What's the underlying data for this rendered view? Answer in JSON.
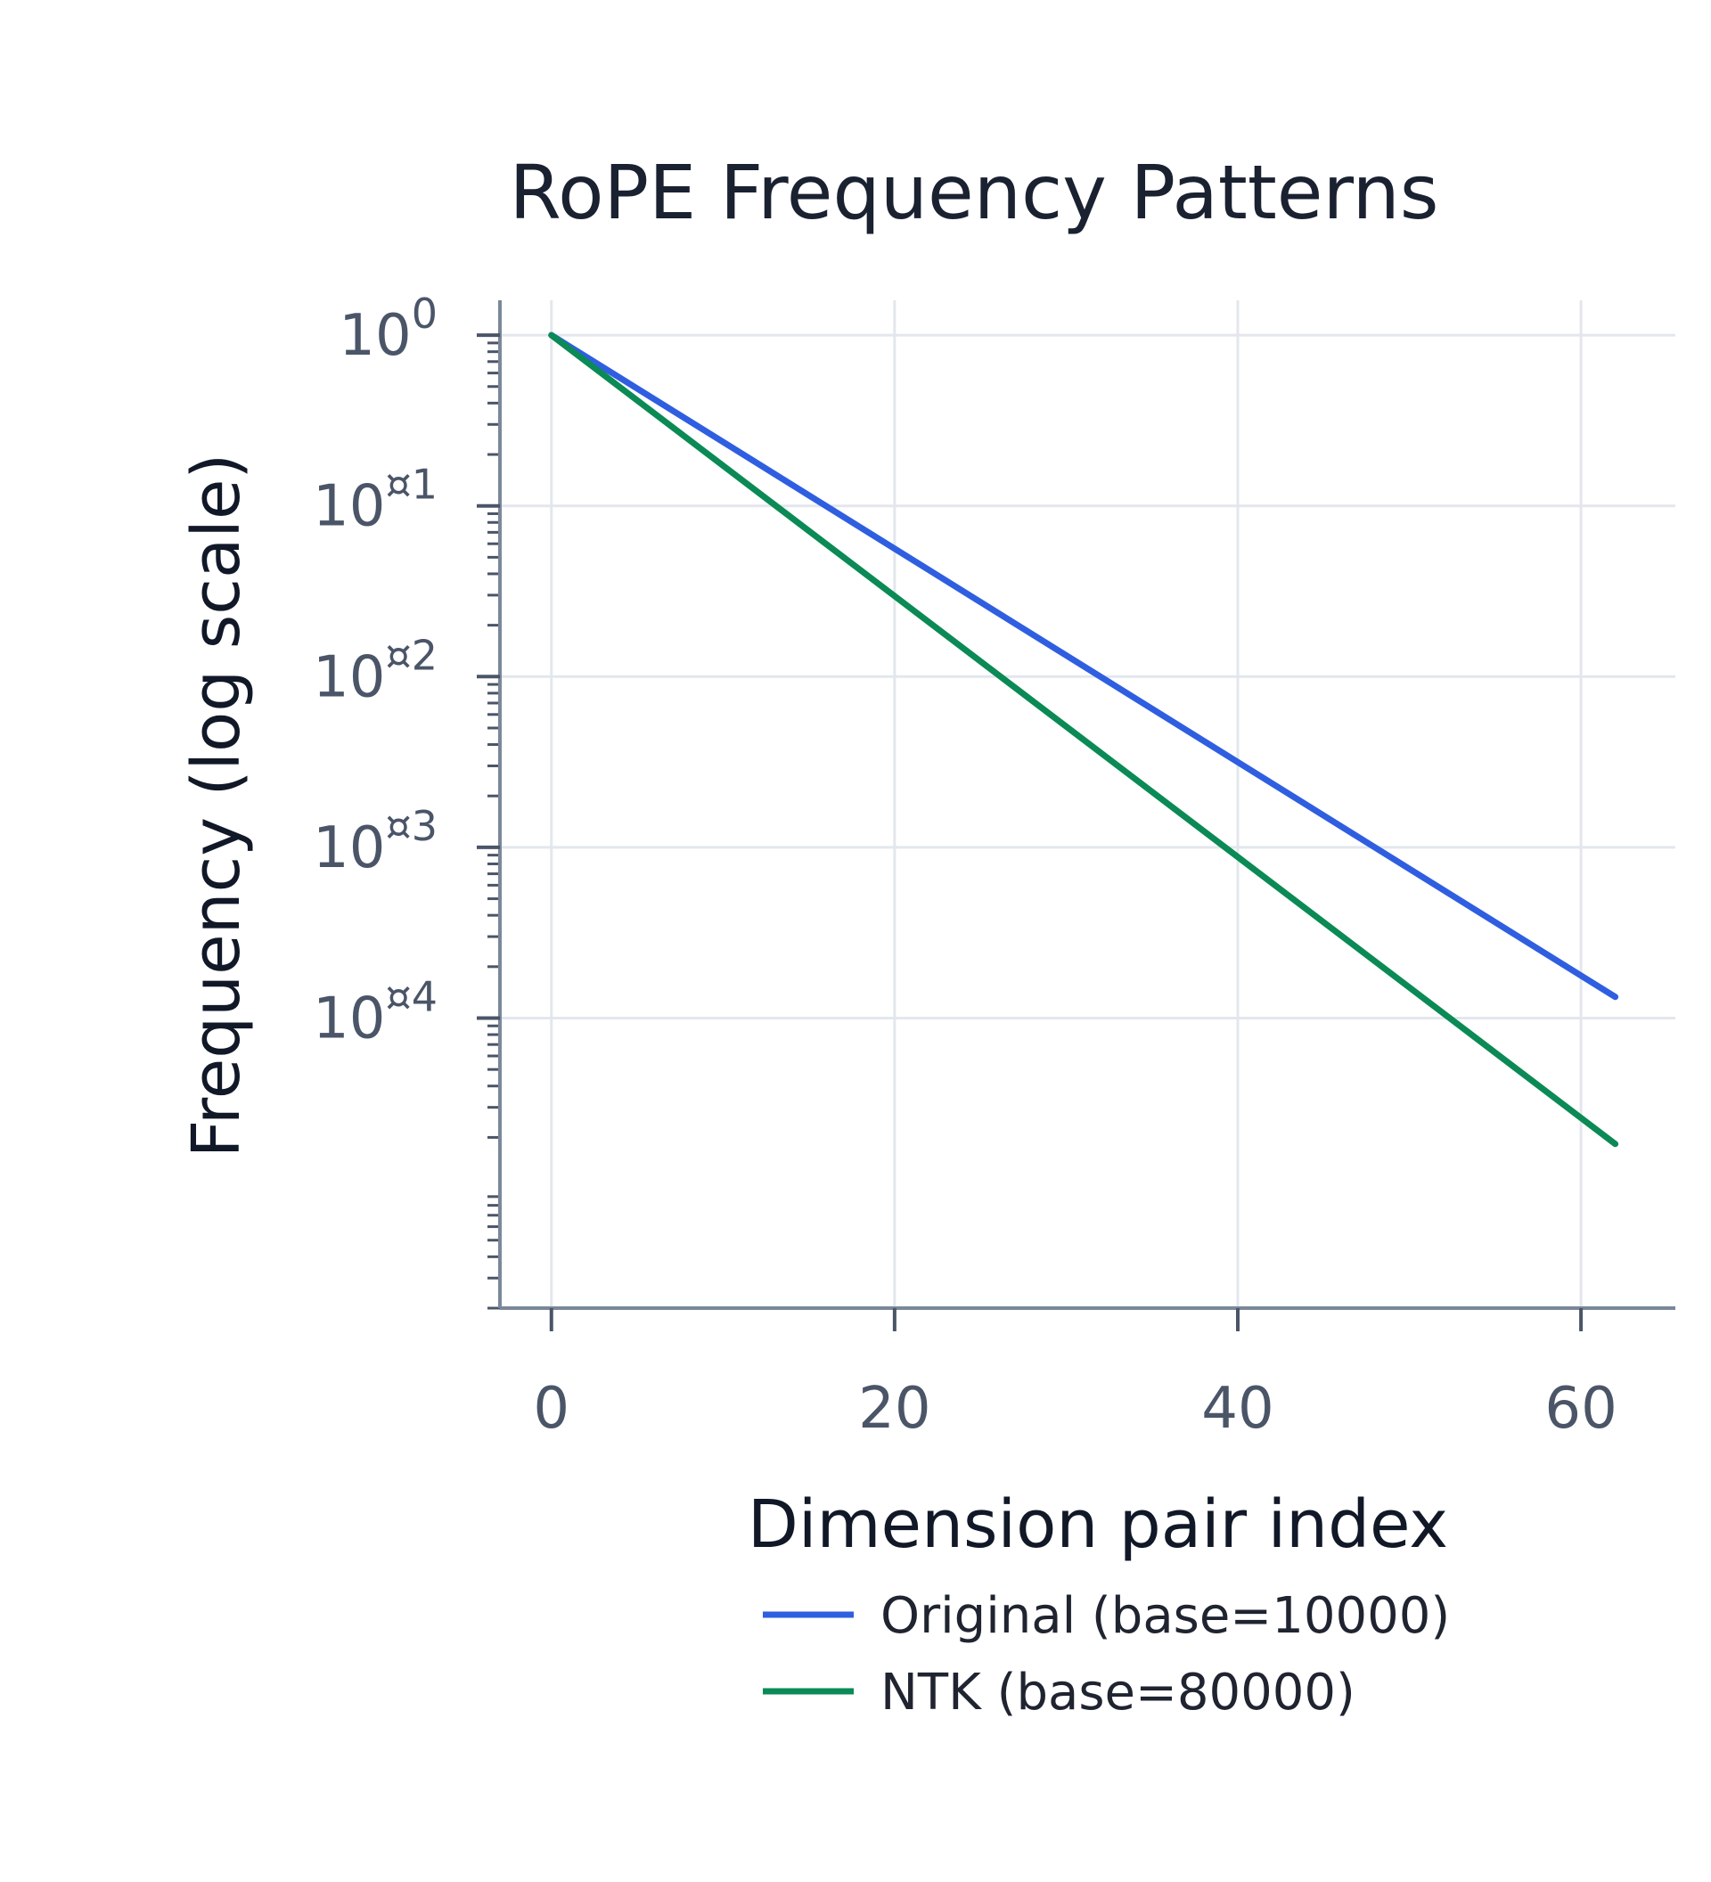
{
  "chart_data": {
    "type": "line",
    "title": "RoPE Frequency Patterns",
    "xlabel": "Dimension pair index",
    "ylabel": "Frequency (log scale)",
    "x_scale": "linear",
    "y_scale": "log",
    "xlim": [
      -3,
      65.5
    ],
    "ylim": [
      2e-06,
      1.6
    ],
    "x_ticks": [
      0,
      20,
      40,
      60
    ],
    "x_tick_labels": [
      "0",
      "20",
      "40",
      "60"
    ],
    "y_ticks": [
      1,
      0.1,
      0.01,
      0.001,
      0.0001
    ],
    "y_tick_labels": [
      {
        "base": "10",
        "exp": "0"
      },
      {
        "base": "10",
        "exp": "¤1"
      },
      {
        "base": "10",
        "exp": "¤2"
      },
      {
        "base": "10",
        "exp": "¤3"
      },
      {
        "base": "10",
        "exp": "¤4"
      }
    ],
    "grid": true,
    "legend_position": "bottom",
    "x": [
      0,
      62
    ],
    "series": [
      {
        "name": "Original (base=10000)",
        "color": "#2f5fe0",
        "values": [
          1.0,
          0.000133
        ]
      },
      {
        "name": "NTK (base=80000)",
        "color": "#0b8a55",
        "values": [
          1.0,
          1.83e-05
        ]
      }
    ]
  }
}
